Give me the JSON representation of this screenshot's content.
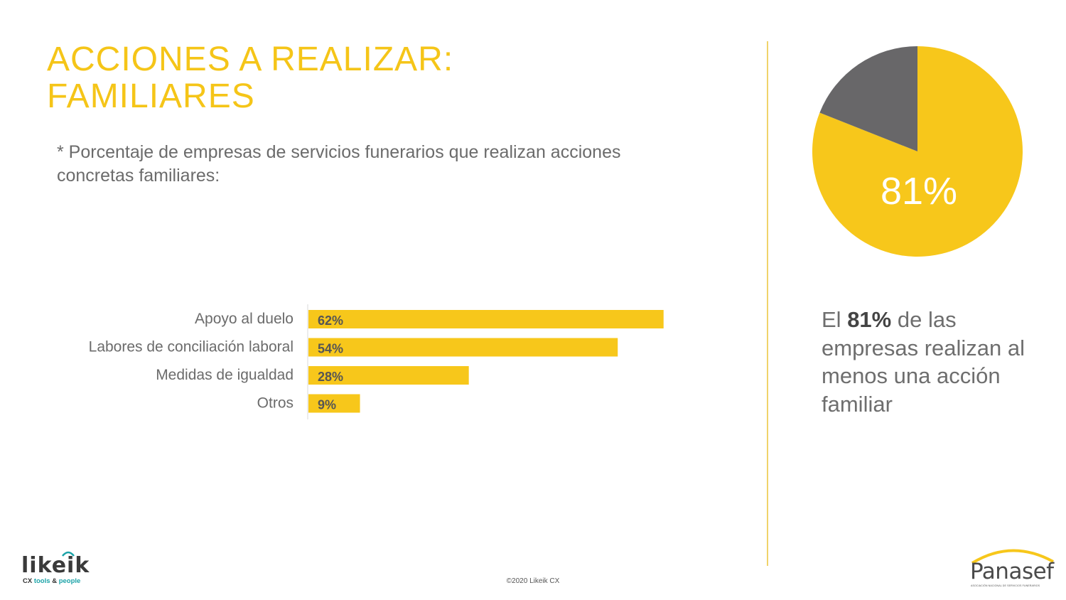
{
  "header": {
    "title_line1": "ACCIONES A REALIZAR:",
    "title_line2": "FAMILIARES",
    "subtitle": "* Porcentaje de empresas de servicios funerarios que realizan acciones concretas familiares:"
  },
  "chart_data": [
    {
      "type": "bar",
      "orientation": "horizontal",
      "categories": [
        "Apoyo al duelo",
        "Labores de conciliación laboral",
        "Medidas de igualdad",
        "Otros"
      ],
      "values": [
        62,
        54,
        28,
        9
      ],
      "data_labels": [
        "62%",
        "54%",
        "28%",
        "9%"
      ],
      "xlim": [
        0,
        100
      ],
      "grid": false,
      "bar_color": "#f7c71b"
    },
    {
      "type": "pie",
      "slices": [
        {
          "value": 81,
          "color": "#f7c71b"
        },
        {
          "value": 19,
          "color": "#686769"
        }
      ],
      "data_labels": [
        "81%"
      ]
    }
  ],
  "summary": {
    "prefix": "El ",
    "highlight": "81%",
    "suffix": " de las empresas realizan al menos una acción familiar"
  },
  "footer": {
    "copyright": "©2020 Likeik CX"
  },
  "logos": {
    "likeik": {
      "wordmark": "likeik",
      "tagline_cx": "CX",
      "tagline_tools": "tools",
      "tagline_amp": "&",
      "tagline_people": "people"
    },
    "panasef": {
      "wordmark": "Panasef",
      "subline": "ASOCIACIÓN NACIONAL DE SERVICIOS FUNERARIOS"
    }
  },
  "colors": {
    "accent": "#f7c71b",
    "pie_secondary": "#686769",
    "text_gray": "#6b6b6b",
    "teal": "#1ba3a8"
  }
}
